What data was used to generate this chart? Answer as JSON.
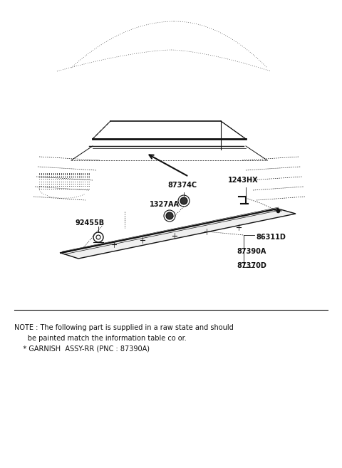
{
  "bg_color": "#ffffff",
  "text_color": "#000000",
  "note_line1": "NOTE : The following part is supplied in a raw state and should",
  "note_line2": "      be painted match the information table co or.",
  "note_line3": "    * GARNISH  ASSY-RR (PNC : 87390A)",
  "lc": "#111111"
}
